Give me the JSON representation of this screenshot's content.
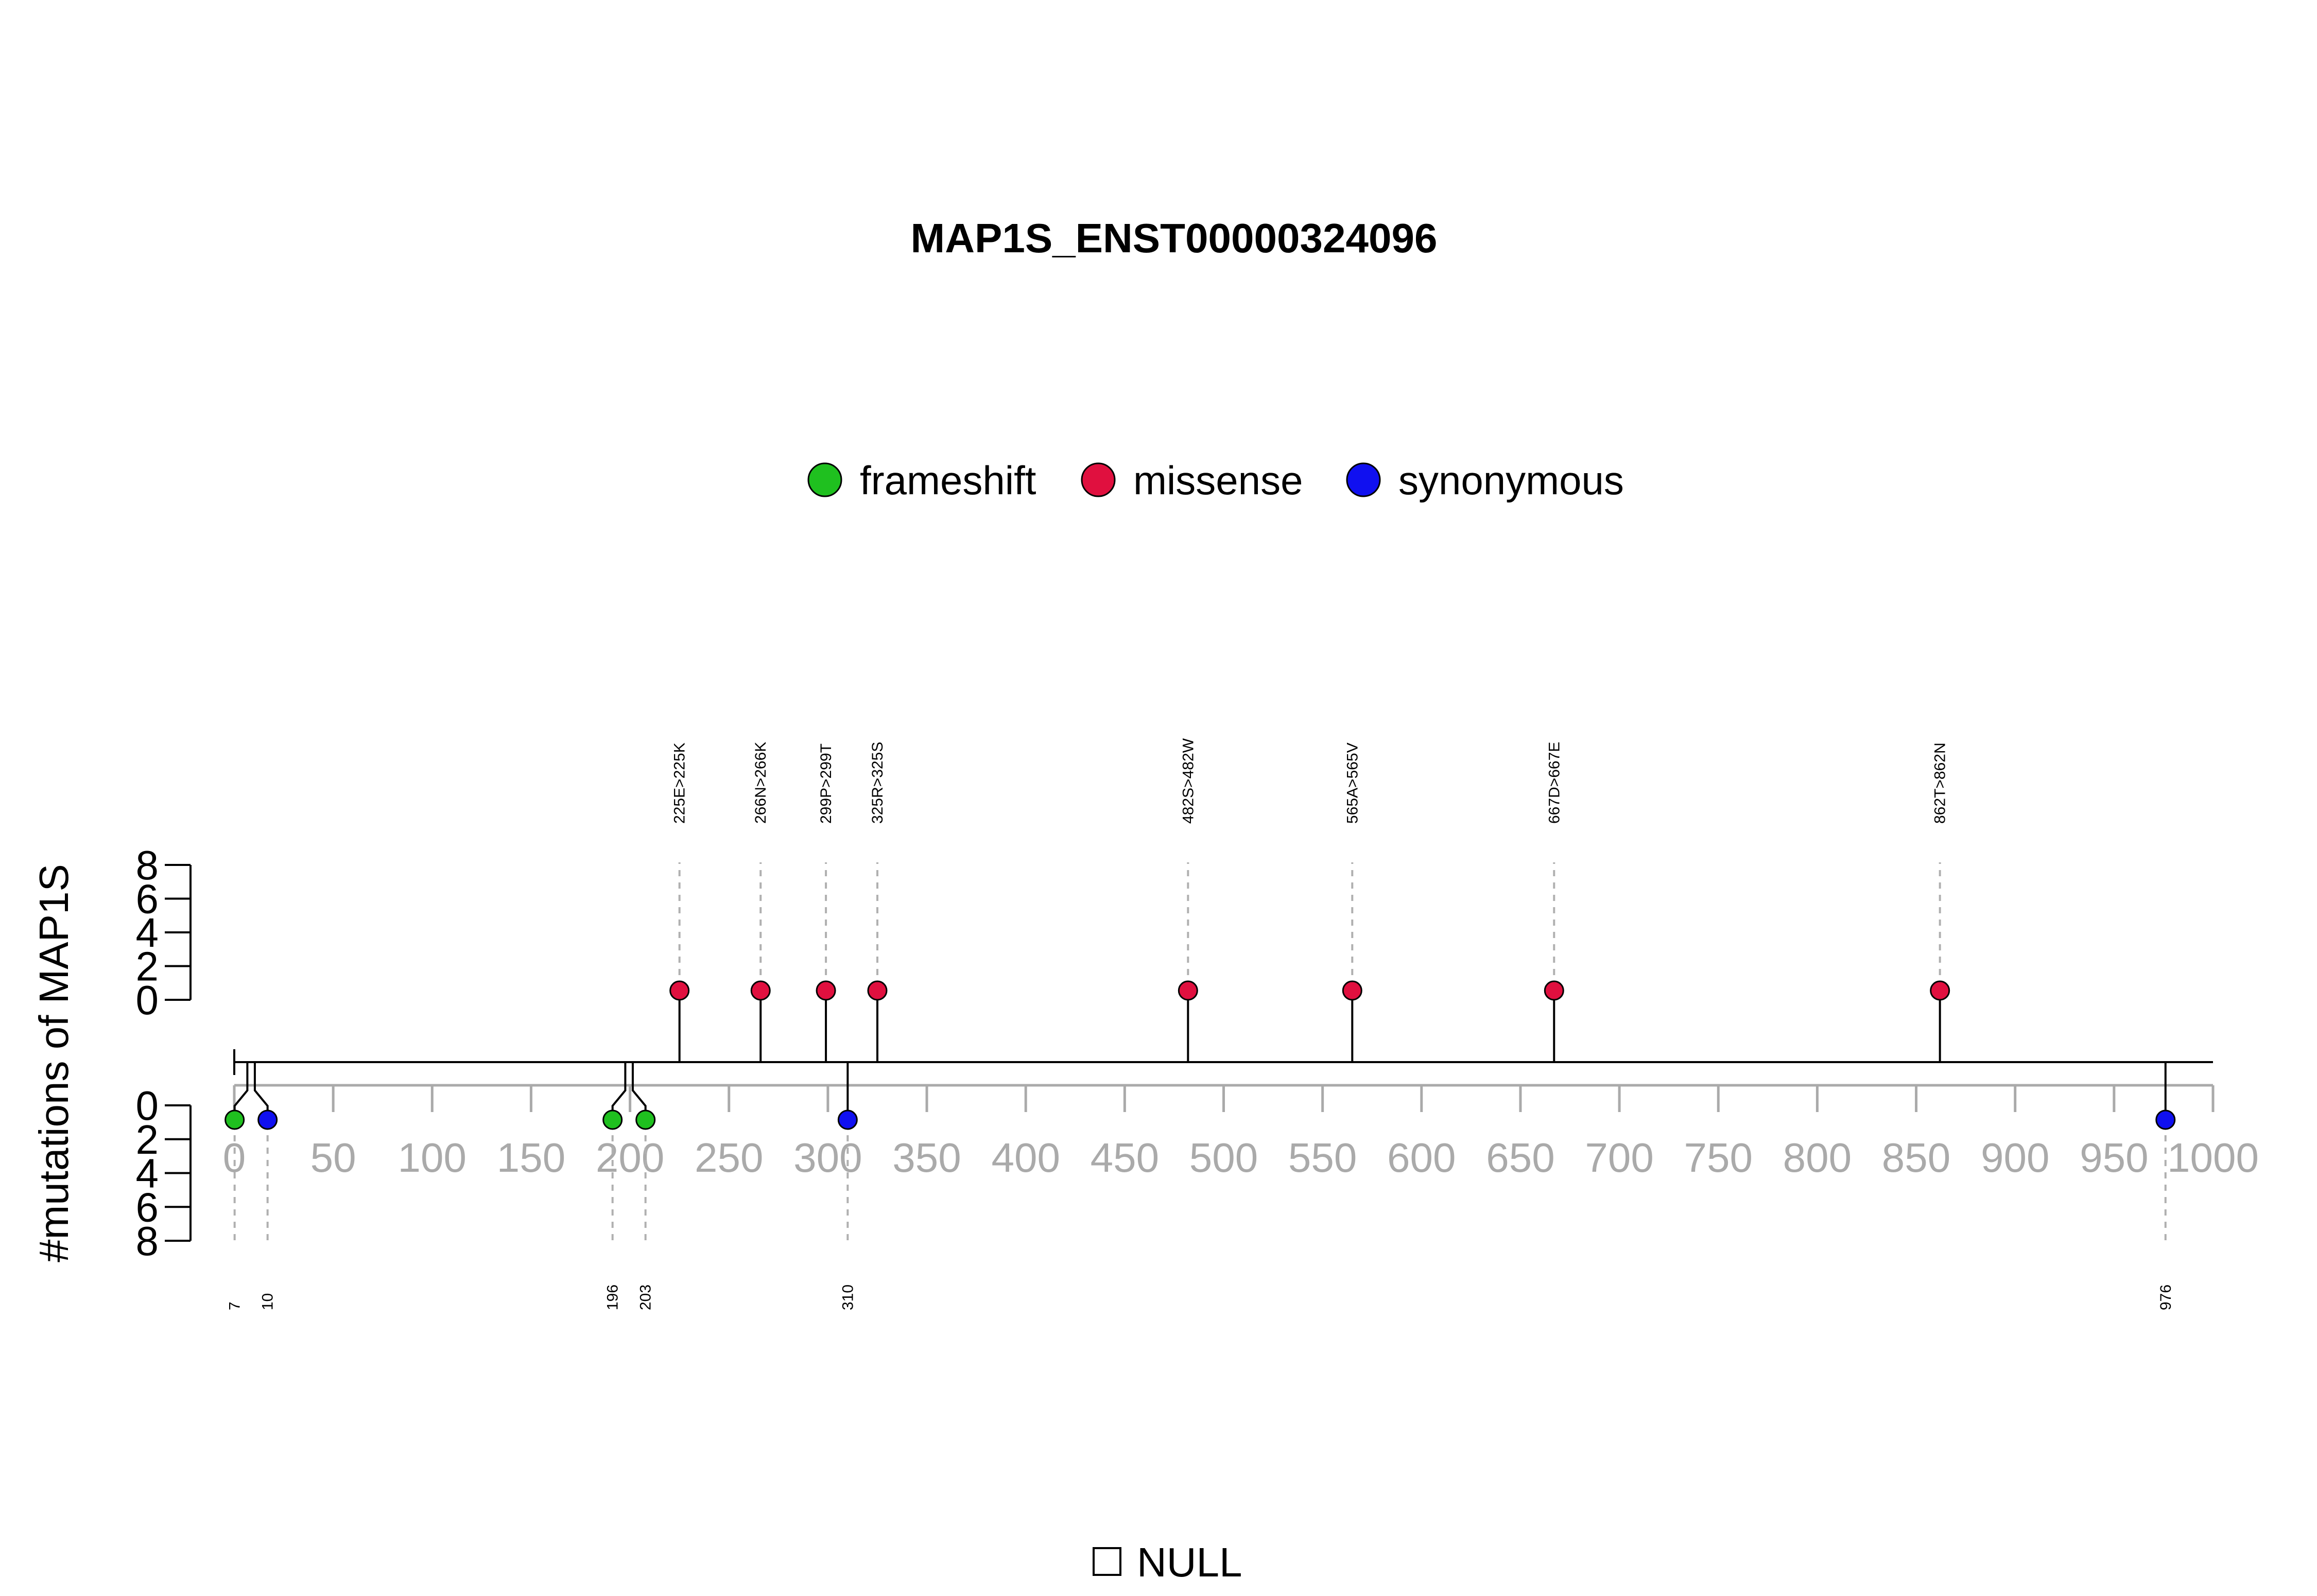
{
  "chart_data": {
    "type": "lollipop",
    "title": "MAP1S_ENST00000324096",
    "ylabel": "#mutations of MAP1S",
    "xlim": [
      0,
      1000
    ],
    "x_ticks": [
      "0",
      "50",
      "100",
      "150",
      "200",
      "250",
      "300",
      "350",
      "400",
      "450",
      "500",
      "550",
      "600",
      "650",
      "700",
      "750",
      "800",
      "850",
      "900",
      "950",
      "1000"
    ],
    "y_ticks_upper": [
      "0",
      "2",
      "4",
      "6",
      "8"
    ],
    "y_ticks_lower": [
      "0",
      "2",
      "4",
      "6",
      "8"
    ],
    "legend": [
      {
        "label": "frameshift",
        "color": "#1fc01f"
      },
      {
        "label": "missense",
        "color": "#e0103f"
      },
      {
        "label": "synonymous",
        "color": "#1010f0"
      }
    ],
    "domain_legend": {
      "label": "NULL"
    },
    "mutations_upper": [
      {
        "position": 225,
        "label": "225E>225K",
        "type": "missense",
        "count": 1
      },
      {
        "position": 266,
        "label": "266N>266K",
        "type": "missense",
        "count": 1
      },
      {
        "position": 299,
        "label": "299P>299T",
        "type": "missense",
        "count": 1
      },
      {
        "position": 325,
        "label": "325R>325S",
        "type": "missense",
        "count": 1
      },
      {
        "position": 482,
        "label": "482S>482W",
        "type": "missense",
        "count": 1
      },
      {
        "position": 565,
        "label": "565A>565V",
        "type": "missense",
        "count": 1
      },
      {
        "position": 667,
        "label": "667D>667E",
        "type": "missense",
        "count": 1
      },
      {
        "position": 862,
        "label": "862T>862N",
        "type": "missense",
        "count": 1
      }
    ],
    "mutations_lower": [
      {
        "position": 7,
        "label": "7",
        "type": "frameshift",
        "count": 1
      },
      {
        "position": 10,
        "label": "10",
        "type": "synonymous",
        "count": 1
      },
      {
        "position": 196,
        "label": "196",
        "type": "frameshift",
        "count": 1
      },
      {
        "position": 203,
        "label": "203",
        "type": "frameshift",
        "count": 1
      },
      {
        "position": 310,
        "label": "310",
        "type": "synonymous",
        "count": 1
      },
      {
        "position": 976,
        "label": "976",
        "type": "synonymous",
        "count": 1
      }
    ]
  }
}
